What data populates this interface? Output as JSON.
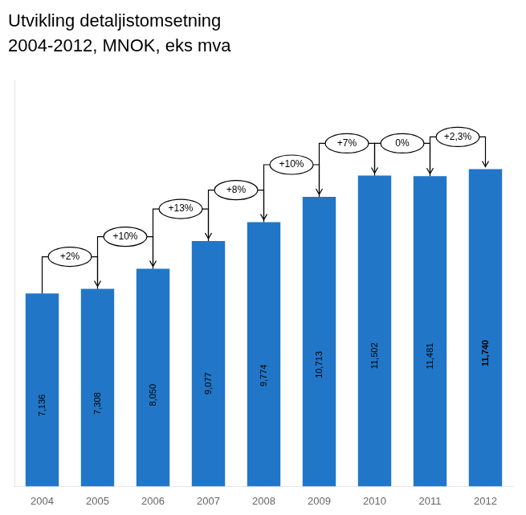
{
  "chart_data": {
    "type": "bar",
    "title": "Utvikling detaljistomsetning",
    "subtitle": "2004-2012, MNOK, eks mva",
    "categories": [
      "2004",
      "2005",
      "2006",
      "2007",
      "2008",
      "2009",
      "2010",
      "2011",
      "2012"
    ],
    "values": [
      7136,
      7308,
      8050,
      9077,
      9774,
      10713,
      11502,
      11481,
      11740
    ],
    "value_labels": [
      "7,136",
      "7,308",
      "8,050",
      "9,077",
      "9,774",
      "10,713",
      "11,502",
      "11,481",
      "11,740"
    ],
    "data_labels": true,
    "color": "#2176c7",
    "ylim": [
      0,
      15000
    ],
    "grid": false,
    "tick_labels": "x",
    "annotations": [
      "+2%",
      "+10%",
      "+13%",
      "+8%",
      "+10%",
      "+7%",
      "0%",
      "+2,3%"
    ]
  }
}
